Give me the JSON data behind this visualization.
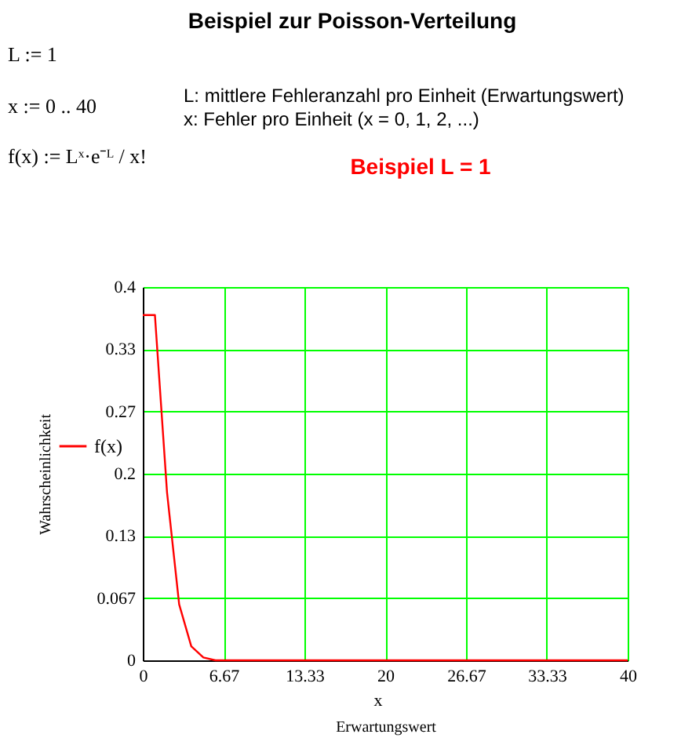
{
  "chart_data": {
    "type": "line",
    "title": "Beispiel zur Poisson-Verteilung",
    "xlabel": "Erwartungswert",
    "ylabel": "Wahrscheinlichkeit",
    "annotations": [
      "L := 1",
      "x := 0 .. 40",
      "f(x) := Lˣ·e⁻ᴸ / x!",
      "L: mittlere Fehleranzahl pro Einheit (Erwartungswert)",
      "x: Fehler pro Einheit (x = 0, 1, 2, ...)",
      "Beispiel L = 1",
      "x"
    ],
    "x": [
      0,
      1,
      2,
      3,
      4,
      5,
      6,
      7,
      8,
      9,
      10,
      11,
      12,
      13,
      14,
      15,
      16,
      17,
      18,
      19,
      20,
      21,
      22,
      23,
      24,
      25,
      26,
      27,
      28,
      29,
      30,
      31,
      32,
      33,
      34,
      35,
      36,
      37,
      38,
      39,
      40
    ],
    "series": [
      {
        "name": "f(x)",
        "color": "#ff0000",
        "values": [
          0.37,
          0.37,
          0.18,
          0.06,
          0.015,
          0.003,
          0,
          0,
          0,
          0,
          0,
          0,
          0,
          0,
          0,
          0,
          0,
          0,
          0,
          0,
          0,
          0,
          0,
          0,
          0,
          0,
          0,
          0,
          0,
          0,
          0,
          0,
          0,
          0,
          0,
          0,
          0,
          0,
          0,
          0,
          0
        ]
      }
    ],
    "xlim": [
      0,
      40
    ],
    "xticks": [
      0,
      {
        "value": 6.667,
        "label": "6.67"
      },
      {
        "value": 13.333,
        "label": "13.33"
      },
      20,
      {
        "value": 26.667,
        "label": "26.67"
      },
      {
        "value": 33.333,
        "label": "33.33"
      },
      40
    ],
    "ylim": [
      0,
      0.4
    ],
    "yticks": [
      0,
      {
        "value": 0.0667,
        "label": "0.067"
      },
      {
        "value": 0.1333,
        "label": "0.13"
      },
      0.2,
      {
        "value": 0.2667,
        "label": "0.27"
      },
      {
        "value": 0.3333,
        "label": "0.33"
      },
      0.4
    ],
    "grid": true,
    "legend": "left",
    "line_style": "solid"
  }
}
